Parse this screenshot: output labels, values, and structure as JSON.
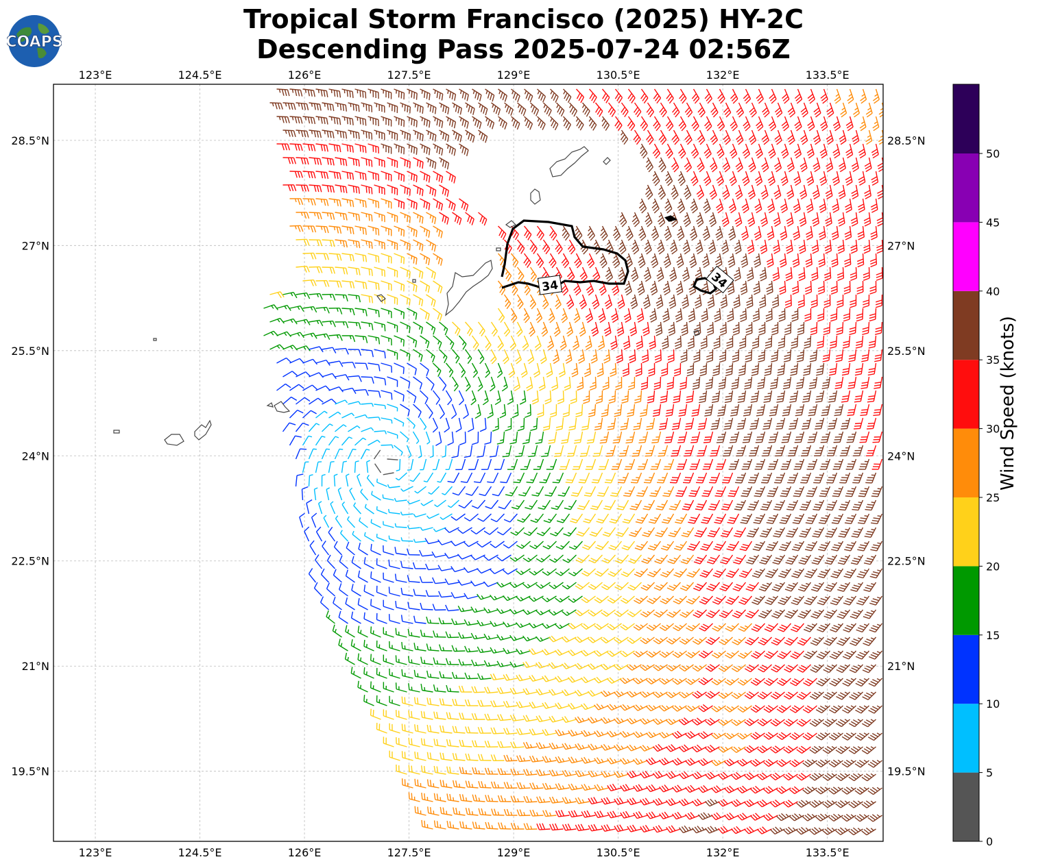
{
  "title": {
    "line1": "Tropical Storm Francisco (2025) HY-2C",
    "line2": "Descending Pass 2025-07-24 02:56Z"
  },
  "logo": {
    "text": "COAPS",
    "icon": "globe-logo-icon"
  },
  "map": {
    "lon_range": [
      122.4,
      134.3
    ],
    "lat_range": [
      18.5,
      29.3
    ],
    "lon_ticks": [
      "123°E",
      "124.5°E",
      "126°E",
      "127.5°E",
      "129°E",
      "130.5°E",
      "132°E",
      "133.5°E"
    ],
    "lat_ticks": [
      "28.5°N",
      "27°N",
      "25.5°N",
      "24°N",
      "22.5°N",
      "21°N",
      "19.5°N"
    ],
    "grid": true,
    "contour_label": "34",
    "storm_center_approx": {
      "lon": 127.2,
      "lat": 23.9
    }
  },
  "colorbar": {
    "label": "Wind Speed (knots)",
    "ticks": [
      "0",
      "5",
      "10",
      "15",
      "20",
      "25",
      "30",
      "35",
      "40",
      "45",
      "50"
    ],
    "bins": [
      {
        "range": "0-5",
        "color": "#555555"
      },
      {
        "range": "5-10",
        "color": "#00bfff"
      },
      {
        "range": "10-15",
        "color": "#0033ff"
      },
      {
        "range": "15-20",
        "color": "#009900"
      },
      {
        "range": "20-25",
        "color": "#ffd11a"
      },
      {
        "range": "25-30",
        "color": "#ff8c0a"
      },
      {
        "range": "30-35",
        "color": "#ff0d0d"
      },
      {
        "range": "35-40",
        "color": "#7f3b22"
      },
      {
        "range": "40-45",
        "color": "#ff00ff"
      },
      {
        "range": "45-50",
        "color": "#8800b3"
      },
      {
        "range": "50+",
        "color": "#2d0059"
      }
    ]
  }
}
